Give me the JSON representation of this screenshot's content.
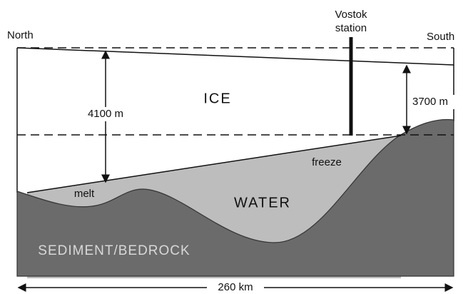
{
  "labels": {
    "north": "North",
    "south": "South",
    "station": [
      "Vostok",
      "station"
    ],
    "ice": "ICE",
    "water": "WATER",
    "bedrock": "SEDIMENT/BEDROCK",
    "melt": "melt",
    "freeze": "freeze",
    "depth_north": "4100 m",
    "depth_station": "3700 m",
    "width": "260 km"
  }
}
